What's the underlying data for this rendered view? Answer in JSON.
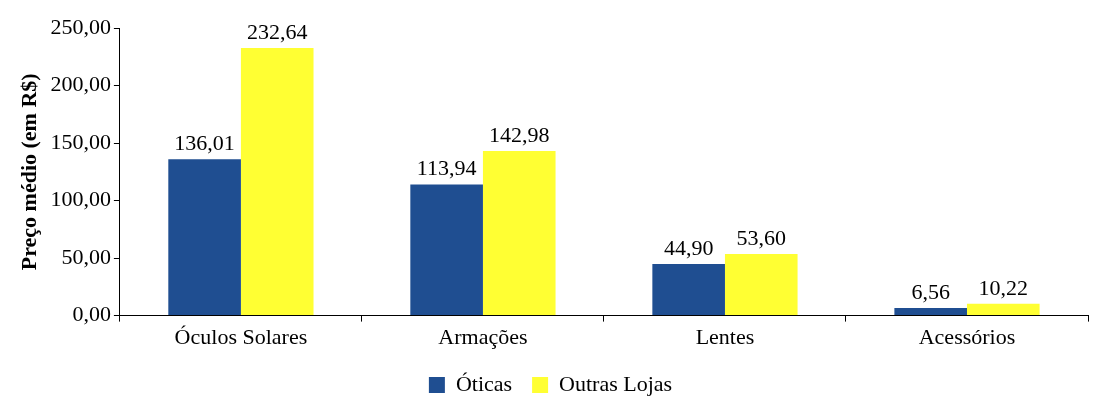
{
  "chart_data": {
    "type": "bar",
    "ylabel": "Preço médio (em R$)",
    "categories": [
      "Óculos Solares",
      "Armações",
      "Lentes",
      "Acessórios"
    ],
    "series": [
      {
        "name": "Óticas",
        "color": "#1f4e91",
        "values": [
          136.01,
          113.94,
          44.9,
          6.56
        ],
        "value_labels": [
          "136,01",
          "113,94",
          "44,90",
          "6,56"
        ]
      },
      {
        "name": "Outras Lojas",
        "color": "#ffff33",
        "values": [
          232.64,
          142.98,
          53.6,
          10.22
        ],
        "value_labels": [
          "232,64",
          "142,98",
          "53,60",
          "10,22"
        ]
      }
    ],
    "ylim": [
      0,
      250
    ],
    "yticks": [
      {
        "value": 0,
        "label": "0,00"
      },
      {
        "value": 50,
        "label": "50,00"
      },
      {
        "value": 100,
        "label": "100,00"
      },
      {
        "value": 150,
        "label": "150,00"
      },
      {
        "value": 200,
        "label": "200,00"
      },
      {
        "value": 250,
        "label": "250,00"
      }
    ],
    "grid": false,
    "legend": "bottom"
  }
}
